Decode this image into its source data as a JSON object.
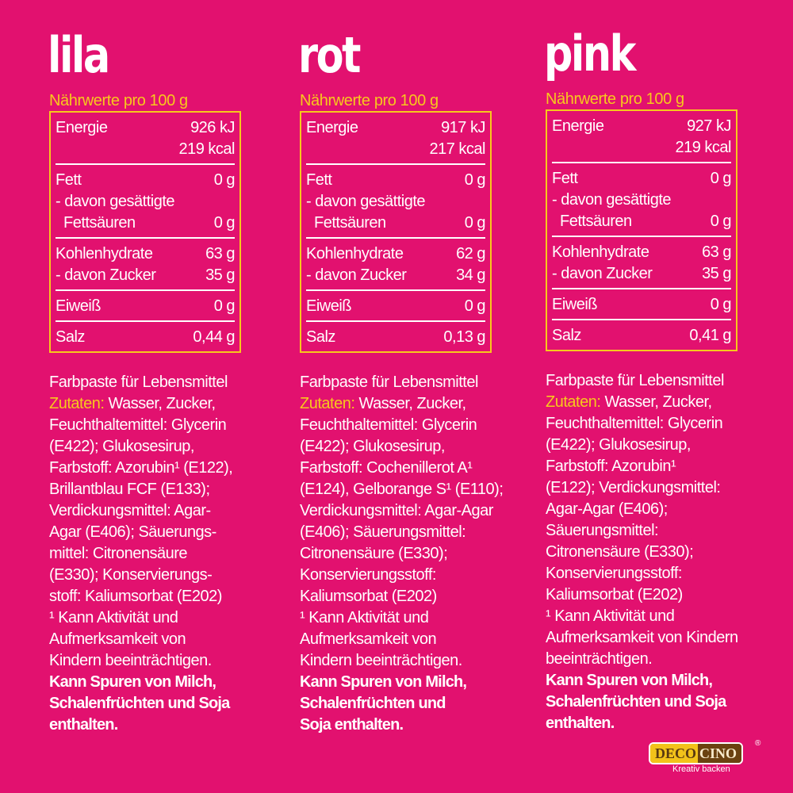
{
  "columns": [
    {
      "title": "lila",
      "nw_label": "Nährwerte pro 100 g",
      "energie": "Energie",
      "kj": "926 kJ",
      "kcal": "219 kcal",
      "fett": "Fett",
      "fett_v": "0 g",
      "ges1": "- davon gesättigte",
      "ges2": "Fettsäuren",
      "ges_v": "0 g",
      "kh": "Kohlenhydrate",
      "kh_v": "63 g",
      "zucker": "- davon Zucker",
      "zucker_v": "35 g",
      "eiweiss": "Eiweiß",
      "eiweiss_v": "0 g",
      "salz": "Salz",
      "salz_v": "0,44 g",
      "intro": "Farbpaste für Lebensmittel",
      "zutaten_label": "Zutaten:",
      "first": " Wasser, Zucker,",
      "lines": [
        "Feuchthaltemittel: Glycerin",
        "(E422); Glukosesirup,",
        "Farbstoff: Azorubin¹ (E122),",
        "Brillantblau FCF (E133);",
        "Verdickungsmittel: Agar-",
        "Agar (E406); Säuerungs-",
        "mittel: Citronensäure",
        "(E330); Konservierungs-",
        "stoff: Kaliumsorbat (E202)",
        "¹ Kann Aktivität und",
        "Aufmerksamkeit von",
        "Kindern beeinträchtigen."
      ],
      "bold": [
        "Kann Spuren von Milch,",
        "Schalenfrüchten und Soja",
        "enthalten."
      ]
    },
    {
      "title": "rot",
      "nw_label": "Nährwerte pro 100 g",
      "energie": "Energie",
      "kj": "917 kJ",
      "kcal": "217 kcal",
      "fett": "Fett",
      "fett_v": "0 g",
      "ges1": "- davon gesättigte",
      "ges2": "Fettsäuren",
      "ges_v": "0 g",
      "kh": "Kohlenhydrate",
      "kh_v": "62 g",
      "zucker": "- davon Zucker",
      "zucker_v": "34 g",
      "eiweiss": "Eiweiß",
      "eiweiss_v": "0 g",
      "salz": "Salz",
      "salz_v": "0,13 g",
      "intro": "Farbpaste für Lebensmittel",
      "zutaten_label": "Zutaten:",
      "first": " Wasser, Zucker,",
      "lines": [
        "Feuchthaltemittel: Glycerin",
        "(E422); Glukosesirup,",
        "Farbstoff: Cochenillerot A¹",
        "(E124), Gelborange S¹ (E110);",
        "Verdickungsmittel: Agar-Agar",
        "(E406); Säuerungsmittel:",
        "Citronensäure (E330);",
        "Konservierungsstoff:",
        "Kaliumsorbat (E202)",
        "¹ Kann Aktivität und",
        "Aufmerksamkeit von",
        "Kindern beeinträchtigen."
      ],
      "bold": [
        "Kann Spuren von Milch,",
        "Schalenfrüchten und",
        "Soja enthalten."
      ]
    },
    {
      "title": "pink",
      "nw_label": "Nährwerte pro 100 g",
      "energie": "Energie",
      "kj": "927 kJ",
      "kcal": "219 kcal",
      "fett": "Fett",
      "fett_v": "0 g",
      "ges1": "- davon gesättigte",
      "ges2": "Fettsäuren",
      "ges_v": "0 g",
      "kh": "Kohlenhydrate",
      "kh_v": "63 g",
      "zucker": "- davon Zucker",
      "zucker_v": "35 g",
      "eiweiss": "Eiweiß",
      "eiweiss_v": "0 g",
      "salz": "Salz",
      "salz_v": "0,41 g",
      "intro": "Farbpaste für Lebensmittel",
      "zutaten_label": "Zutaten:",
      "first": " Wasser, Zucker,",
      "lines": [
        "Feuchthaltemittel: Glycerin",
        "(E422); Glukosesirup,",
        "Farbstoff: Azorubin¹",
        "(E122); Verdickungsmittel:",
        "Agar-Agar (E406);",
        "Säuerungsmittel:",
        "Citronensäure (E330);",
        "Konservierungsstoff:",
        "Kaliumsorbat (E202)",
        "¹ Kann Aktivität und",
        "Aufmerksamkeit von Kindern",
        "beeinträchtigen."
      ],
      "bold": [
        "Kann Spuren von Milch,",
        "Schalenfrüchten und Soja",
        "enthalten."
      ]
    }
  ],
  "logo": {
    "left": "DECO",
    "right": "CINO",
    "tagline": "Kreativ backen",
    "reg": "®"
  },
  "colors": {
    "background": "#e2116f",
    "accent": "#f7c81c"
  }
}
